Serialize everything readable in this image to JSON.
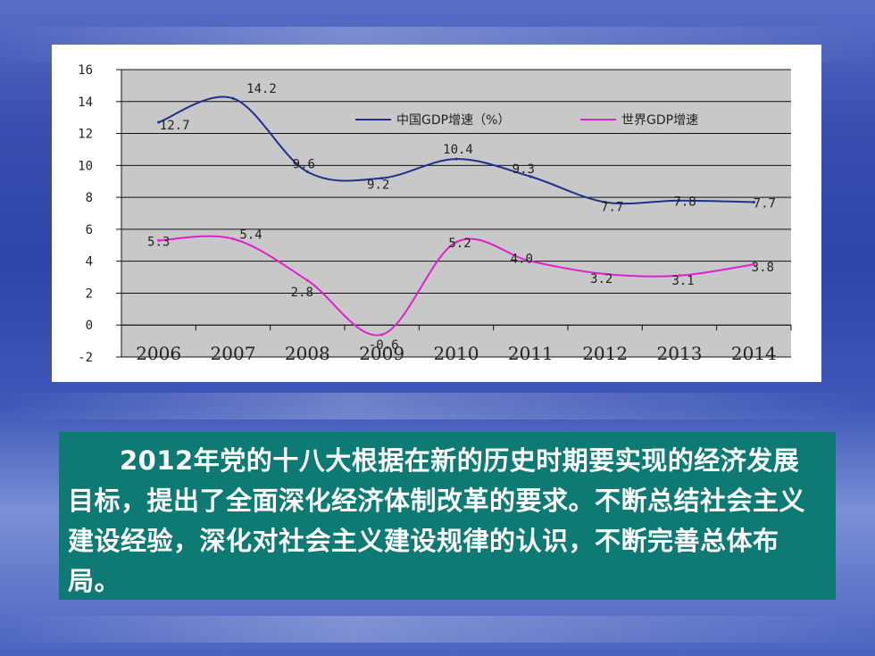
{
  "chart_data": {
    "type": "line",
    "categories": [
      "2006",
      "2007",
      "2008",
      "2009",
      "2010",
      "2011",
      "2012",
      "2013",
      "2014"
    ],
    "ylim": [
      -2,
      16
    ],
    "yticks": [
      "16",
      "14",
      "12",
      "10",
      "8",
      "6",
      "4",
      "2",
      "0",
      "-2"
    ],
    "grid": true,
    "legend_position": "top-right",
    "series": [
      {
        "name": "中国GDP增速（%）",
        "color": "#1f2f8f",
        "values": [
          12.7,
          14.2,
          9.6,
          9.2,
          10.4,
          9.3,
          7.7,
          7.8,
          7.7
        ],
        "labels": [
          "12.7",
          "14.2",
          "9.6",
          "9.2",
          "10.4",
          "9.3",
          "7.7",
          "7.8",
          "7.7"
        ]
      },
      {
        "name": "世界GDP增速",
        "color": "#e020d0",
        "values": [
          5.3,
          5.4,
          2.8,
          -0.6,
          5.2,
          4.0,
          3.2,
          3.1,
          3.8
        ],
        "labels": [
          "5.3",
          "5.4",
          "2.8",
          "-0.6",
          "5.2",
          "4.0",
          "3.2",
          "3.1",
          "3.8"
        ]
      }
    ]
  },
  "caption": "2012年党的十八大根据在新的历史时期要实现的经济发展目标，提出了全面深化经济体制改革的要求。不断总结社会主义建设经验，深化对社会主义建设规律的认识，不断完善总体布局。"
}
